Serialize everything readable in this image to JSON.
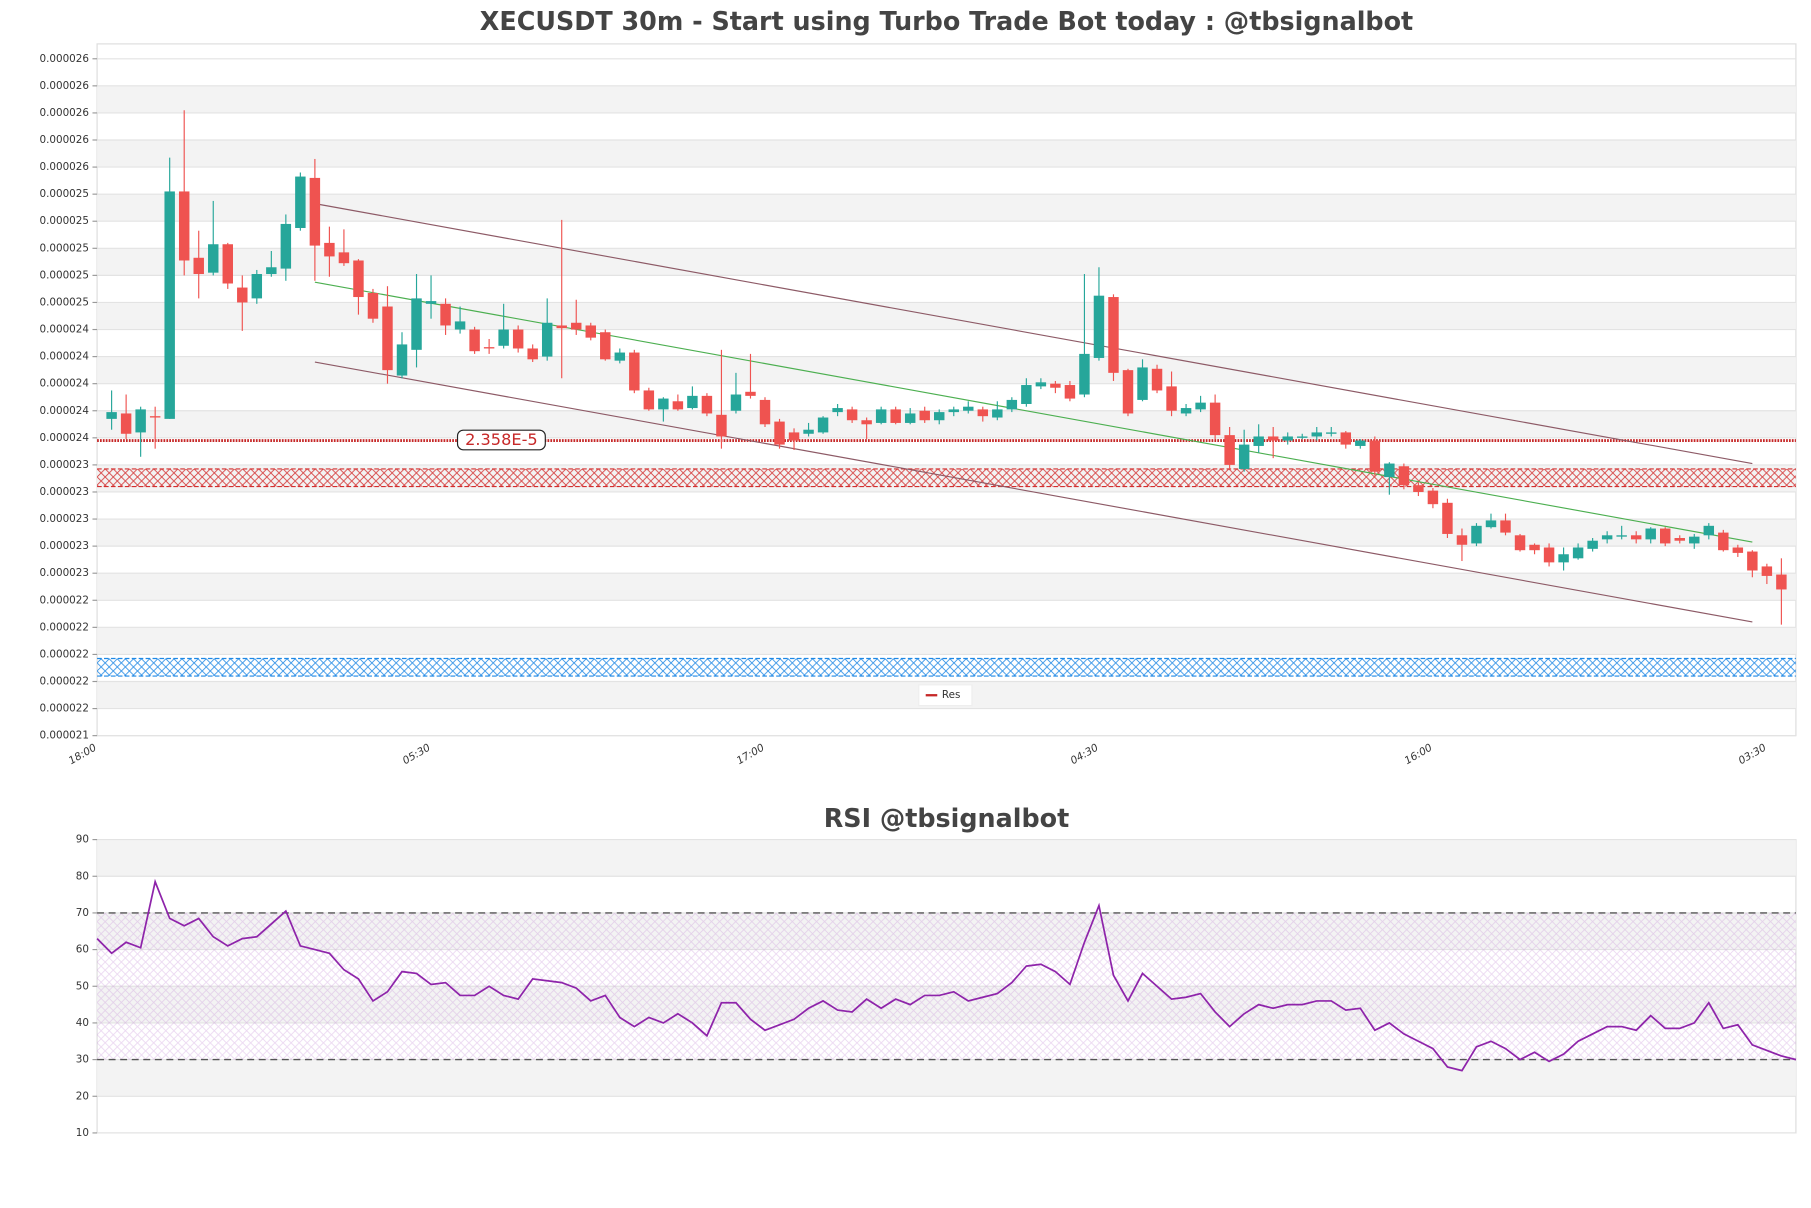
{
  "chart_data": [
    {
      "type": "candlestick",
      "title": "XECUSDT 30m - Start using Turbo Trade Bot today : @tbsignalbot",
      "categories": [
        "18:00",
        null,
        null,
        null,
        null,
        null,
        null,
        null,
        null,
        null,
        null,
        null,
        null,
        null,
        null,
        null,
        null,
        null,
        null,
        null,
        null,
        null,
        null,
        "05:30",
        null,
        null,
        null,
        null,
        null,
        null,
        null,
        null,
        null,
        null,
        null,
        null,
        null,
        null,
        null,
        null,
        null,
        null,
        null,
        null,
        null,
        null,
        "17:00",
        null,
        null,
        null,
        null,
        null,
        null,
        null,
        null,
        null,
        null,
        null,
        null,
        null,
        null,
        null,
        null,
        null,
        null,
        null,
        null,
        null,
        null,
        "04:30",
        null,
        null,
        null,
        null,
        null,
        null,
        null,
        null,
        null,
        null,
        null,
        null,
        null,
        null,
        null,
        null,
        null,
        null,
        null,
        null,
        null,
        null,
        "16:00",
        null,
        null,
        null,
        null,
        null,
        null,
        null,
        null,
        null,
        null,
        null,
        null,
        null,
        null,
        null,
        null,
        null,
        null,
        null,
        null,
        null,
        null,
        "03:30",
        null,
        null
      ],
      "ohlc": [
        null,
        [
          2.374e-05,
          2.395e-05,
          2.366e-05,
          2.379e-05
        ],
        [
          2.378e-05,
          2.392e-05,
          2.359e-05,
          2.363e-05
        ],
        [
          2.364e-05,
          2.383e-05,
          2.346e-05,
          2.381e-05
        ],
        [
          2.376e-05,
          2.383e-05,
          2.352e-05,
          2.375e-05
        ],
        [
          2.374e-05,
          2.567e-05,
          2.374e-05,
          2.542e-05
        ],
        [
          2.542e-05,
          2.602e-05,
          2.48e-05,
          2.491e-05
        ],
        [
          2.493e-05,
          2.513e-05,
          2.463e-05,
          2.481e-05
        ],
        [
          2.482e-05,
          2.535e-05,
          2.48e-05,
          2.503e-05
        ],
        [
          2.503e-05,
          2.504e-05,
          2.47e-05,
          2.474e-05
        ],
        [
          2.471e-05,
          2.48e-05,
          2.439e-05,
          2.46e-05
        ],
        [
          2.463e-05,
          2.484e-05,
          2.459e-05,
          2.481e-05
        ],
        [
          2.481e-05,
          2.498e-05,
          2.479e-05,
          2.486e-05
        ],
        [
          2.485e-05,
          2.525e-05,
          2.476e-05,
          2.518e-05
        ],
        [
          2.515e-05,
          2.556e-05,
          2.513e-05,
          2.553e-05
        ],
        [
          2.552e-05,
          2.566e-05,
          2.476e-05,
          2.502e-05
        ],
        [
          2.504e-05,
          2.516e-05,
          2.479e-05,
          2.494e-05
        ],
        [
          2.497e-05,
          2.514e-05,
          2.487e-05,
          2.489e-05
        ],
        [
          2.491e-05,
          2.492e-05,
          2.451e-05,
          2.464e-05
        ],
        [
          2.467e-05,
          2.47e-05,
          2.445e-05,
          2.448e-05
        ],
        [
          2.457e-05,
          2.472e-05,
          2.4e-05,
          2.41e-05
        ],
        [
          2.406e-05,
          2.438e-05,
          2.404e-05,
          2.429e-05
        ],
        [
          2.425e-05,
          2.481e-05,
          2.412e-05,
          2.463e-05
        ],
        [
          2.459e-05,
          2.48e-05,
          2.448e-05,
          2.461e-05
        ],
        [
          2.459e-05,
          2.463e-05,
          2.436e-05,
          2.443e-05
        ],
        [
          2.44e-05,
          2.457e-05,
          2.437e-05,
          2.446e-05
        ],
        [
          2.44e-05,
          2.442e-05,
          2.422e-05,
          2.424e-05
        ],
        [
          2.427e-05,
          2.433e-05,
          2.422e-05,
          2.426e-05
        ],
        [
          2.428e-05,
          2.459e-05,
          2.426e-05,
          2.44e-05
        ],
        [
          2.44e-05,
          2.443e-05,
          2.423e-05,
          2.426e-05
        ],
        [
          2.426e-05,
          2.429e-05,
          2.416e-05,
          2.418e-05
        ],
        [
          2.42e-05,
          2.463e-05,
          2.417e-05,
          2.445e-05
        ],
        [
          2.443e-05,
          2.521e-05,
          2.404e-05,
          2.441e-05
        ],
        [
          2.445e-05,
          2.462e-05,
          2.436e-05,
          2.44e-05
        ],
        [
          2.443e-05,
          2.445e-05,
          2.432e-05,
          2.434e-05
        ],
        [
          2.438e-05,
          2.44e-05,
          2.417e-05,
          2.418e-05
        ],
        [
          2.417e-05,
          2.426e-05,
          2.415e-05,
          2.423e-05
        ],
        [
          2.423e-05,
          2.425e-05,
          2.393e-05,
          2.395e-05
        ],
        [
          2.395e-05,
          2.397e-05,
          2.38e-05,
          2.381e-05
        ],
        [
          2.381e-05,
          2.39e-05,
          2.372e-05,
          2.389e-05
        ],
        [
          2.387e-05,
          2.392e-05,
          2.38e-05,
          2.381e-05
        ],
        [
          2.382e-05,
          2.398e-05,
          2.381e-05,
          2.391e-05
        ],
        [
          2.391e-05,
          2.393e-05,
          2.376e-05,
          2.378e-05
        ],
        [
          2.377e-05,
          2.425e-05,
          2.352e-05,
          2.361e-05
        ],
        [
          2.38e-05,
          2.408e-05,
          2.378e-05,
          2.392e-05
        ],
        [
          2.394e-05,
          2.422e-05,
          2.389e-05,
          2.391e-05
        ],
        [
          2.388e-05,
          2.39e-05,
          2.368e-05,
          2.37e-05
        ],
        [
          2.372e-05,
          2.374e-05,
          2.352e-05,
          2.355e-05
        ],
        [
          2.364e-05,
          2.367e-05,
          2.351e-05,
          2.358e-05
        ],
        [
          2.363e-05,
          2.371e-05,
          2.361e-05,
          2.366e-05
        ],
        [
          2.364e-05,
          2.376e-05,
          2.363e-05,
          2.375e-05
        ],
        [
          2.379e-05,
          2.385e-05,
          2.376e-05,
          2.382e-05
        ],
        [
          2.381e-05,
          2.383e-05,
          2.371e-05,
          2.373e-05
        ],
        [
          2.373e-05,
          2.375e-05,
          2.359e-05,
          2.37e-05
        ],
        [
          2.371e-05,
          2.383e-05,
          2.37e-05,
          2.381e-05
        ],
        [
          2.381e-05,
          2.383e-05,
          2.37e-05,
          2.371e-05
        ],
        [
          2.371e-05,
          2.382e-05,
          2.37e-05,
          2.378e-05
        ],
        [
          2.38e-05,
          2.383e-05,
          2.371e-05,
          2.373e-05
        ],
        [
          2.373e-05,
          2.381e-05,
          2.37e-05,
          2.379e-05
        ],
        [
          2.379e-05,
          2.383e-05,
          2.376e-05,
          2.381e-05
        ],
        [
          2.38e-05,
          2.387e-05,
          2.378e-05,
          2.383e-05
        ],
        [
          2.381e-05,
          2.383e-05,
          2.372e-05,
          2.376e-05
        ],
        [
          2.375e-05,
          2.387e-05,
          2.373e-05,
          2.381e-05
        ],
        [
          2.381e-05,
          2.39e-05,
          2.379e-05,
          2.388e-05
        ],
        [
          2.385e-05,
          2.404e-05,
          2.383e-05,
          2.399e-05
        ],
        [
          2.398e-05,
          2.404e-05,
          2.396e-05,
          2.401e-05
        ],
        [
          2.4e-05,
          2.402e-05,
          2.393e-05,
          2.397e-05
        ],
        [
          2.399e-05,
          2.402e-05,
          2.387e-05,
          2.389e-05
        ],
        [
          2.392e-05,
          2.481e-05,
          2.39e-05,
          2.422e-05
        ],
        [
          2.419e-05,
          2.486e-05,
          2.417e-05,
          2.465e-05
        ],
        [
          2.464e-05,
          2.466e-05,
          2.402e-05,
          2.408e-05
        ],
        [
          2.41e-05,
          2.411e-05,
          2.376e-05,
          2.378e-05
        ],
        [
          2.388e-05,
          2.418e-05,
          2.387e-05,
          2.412e-05
        ],
        [
          2.411e-05,
          2.414e-05,
          2.393e-05,
          2.395e-05
        ],
        [
          2.398e-05,
          2.409e-05,
          2.376e-05,
          2.38e-05
        ],
        [
          2.378e-05,
          2.385e-05,
          2.376e-05,
          2.382e-05
        ],
        [
          2.381e-05,
          2.391e-05,
          2.379e-05,
          2.386e-05
        ],
        [
          2.386e-05,
          2.392e-05,
          2.359e-05,
          2.362e-05
        ],
        [
          2.362e-05,
          2.368e-05,
          2.337e-05,
          2.34e-05
        ],
        [
          2.337e-05,
          2.366e-05,
          2.335e-05,
          2.355e-05
        ],
        [
          2.354e-05,
          2.37e-05,
          2.349e-05,
          2.361e-05
        ],
        [
          2.361e-05,
          2.368e-05,
          2.345e-05,
          2.358e-05
        ],
        [
          2.358e-05,
          2.364e-05,
          2.355e-05,
          2.361e-05
        ],
        [
          2.36e-05,
          2.363e-05,
          2.359e-05,
          2.361e-05
        ],
        [
          2.361e-05,
          2.368e-05,
          2.358e-05,
          2.364e-05
        ],
        [
          2.363e-05,
          2.368e-05,
          2.361e-05,
          2.364e-05
        ],
        [
          2.364e-05,
          2.365e-05,
          2.352e-05,
          2.355e-05
        ],
        [
          2.354e-05,
          2.359e-05,
          2.352e-05,
          2.358e-05
        ],
        [
          2.358e-05,
          2.361e-05,
          2.332e-05,
          2.335e-05
        ],
        [
          2.331e-05,
          2.342e-05,
          2.318e-05,
          2.341e-05
        ],
        [
          2.339e-05,
          2.341e-05,
          2.322e-05,
          2.325e-05
        ],
        [
          2.325e-05,
          2.327e-05,
          2.317e-05,
          2.32e-05
        ],
        [
          2.321e-05,
          2.323e-05,
          2.308e-05,
          2.311e-05
        ],
        [
          2.312e-05,
          2.315e-05,
          2.286e-05,
          2.289e-05
        ],
        [
          2.288e-05,
          2.293e-05,
          2.269e-05,
          2.281e-05
        ],
        [
          2.282e-05,
          2.297e-05,
          2.28e-05,
          2.295e-05
        ],
        [
          2.294e-05,
          2.304e-05,
          2.293e-05,
          2.299e-05
        ],
        [
          2.299e-05,
          2.304e-05,
          2.288e-05,
          2.29e-05
        ],
        [
          2.288e-05,
          2.289e-05,
          2.276e-05,
          2.277e-05
        ],
        [
          2.281e-05,
          2.282e-05,
          2.274e-05,
          2.277e-05
        ],
        [
          2.279e-05,
          2.282e-05,
          2.265e-05,
          2.268e-05
        ],
        [
          2.268e-05,
          2.279e-05,
          2.262e-05,
          2.274e-05
        ],
        [
          2.271e-05,
          2.282e-05,
          2.27e-05,
          2.279e-05
        ],
        [
          2.278e-05,
          2.286e-05,
          2.276e-05,
          2.284e-05
        ],
        [
          2.285e-05,
          2.291e-05,
          2.282e-05,
          2.288e-05
        ],
        [
          2.287e-05,
          2.295e-05,
          2.285e-05,
          2.288e-05
        ],
        [
          2.288e-05,
          2.291e-05,
          2.282e-05,
          2.285e-05
        ],
        [
          2.285e-05,
          2.294e-05,
          2.282e-05,
          2.293e-05
        ],
        [
          2.293e-05,
          2.294e-05,
          2.28e-05,
          2.282e-05
        ],
        [
          2.286e-05,
          2.288e-05,
          2.282e-05,
          2.284e-05
        ],
        [
          2.282e-05,
          2.289e-05,
          2.278e-05,
          2.287e-05
        ],
        [
          2.288e-05,
          2.297e-05,
          2.285e-05,
          2.295e-05
        ],
        [
          2.29e-05,
          2.292e-05,
          2.276e-05,
          2.277e-05
        ],
        [
          2.279e-05,
          2.281e-05,
          2.272e-05,
          2.275e-05
        ],
        [
          2.276e-05,
          2.277e-05,
          2.257e-05,
          2.262e-05
        ],
        [
          2.265e-05,
          2.267e-05,
          2.252e-05,
          2.258e-05
        ],
        [
          2.259e-05,
          2.271e-05,
          2.222e-05,
          2.248e-05
        ],
        null
      ],
      "up_color": "#26a69a",
      "down_color": "#ef5350",
      "ylim": [
        2.14e-05,
        2.651e-05
      ],
      "yticks": [
        {
          "value": 2.14e-05,
          "label": "0.000021"
        },
        {
          "value": 2.16e-05,
          "label": "0.000022"
        },
        {
          "value": 2.18e-05,
          "label": "0.000022"
        },
        {
          "value": 2.2e-05,
          "label": "0.000022"
        },
        {
          "value": 2.22e-05,
          "label": "0.000022"
        },
        {
          "value": 2.24e-05,
          "label": "0.000022"
        },
        {
          "value": 2.26e-05,
          "label": "0.000023"
        },
        {
          "value": 2.28e-05,
          "label": "0.000023"
        },
        {
          "value": 2.3e-05,
          "label": "0.000023"
        },
        {
          "value": 2.32e-05,
          "label": "0.000023"
        },
        {
          "value": 2.34e-05,
          "label": "0.000023"
        },
        {
          "value": 2.36e-05,
          "label": "0.000024"
        },
        {
          "value": 2.38e-05,
          "label": "0.000024"
        },
        {
          "value": 2.4e-05,
          "label": "0.000024"
        },
        {
          "value": 2.42e-05,
          "label": "0.000024"
        },
        {
          "value": 2.44e-05,
          "label": "0.000024"
        },
        {
          "value": 2.46e-05,
          "label": "0.000025"
        },
        {
          "value": 2.48e-05,
          "label": "0.000025"
        },
        {
          "value": 2.5e-05,
          "label": "0.000025"
        },
        {
          "value": 2.52e-05,
          "label": "0.000025"
        },
        {
          "value": 2.54e-05,
          "label": "0.000025"
        },
        {
          "value": 2.56e-05,
          "label": "0.000026"
        },
        {
          "value": 2.58e-05,
          "label": "0.000026"
        },
        {
          "value": 2.6e-05,
          "label": "0.000026"
        },
        {
          "value": 2.62e-05,
          "label": "0.000026"
        },
        {
          "value": 2.64e-05,
          "label": "0.000026"
        }
      ],
      "grid": true,
      "lines": [
        {
          "x": [
            15,
            114
          ],
          "y": [
            2.533e-05,
            2.341e-05
          ],
          "color": "#8d5a66"
        },
        {
          "x": [
            15,
            114
          ],
          "y": [
            2.475e-05,
            2.283e-05
          ],
          "color": "#4caf50"
        },
        {
          "x": [
            15,
            114
          ],
          "y": [
            2.416e-05,
            2.224e-05
          ],
          "color": "#8d5a66"
        }
      ],
      "zones": [
        {
          "range": [
            2.324e-05,
            2.337e-05
          ],
          "color": "#d32f2f"
        },
        {
          "range": [
            2.184e-05,
            2.197e-05
          ],
          "color": "#1e88e5"
        }
      ],
      "res": {
        "name": "Res",
        "value": 2.358e-05,
        "label": "2.358E-5",
        "color": "#c62828"
      },
      "legend": "lower center"
    },
    {
      "type": "line",
      "title": "RSI @tbsignalbot",
      "values": [
        63,
        59,
        62,
        60.5,
        78.5,
        68.5,
        66.5,
        68.5,
        63.5,
        61,
        63,
        63.5,
        67,
        70.5,
        61,
        60,
        59,
        54.5,
        52,
        46,
        48.5,
        54,
        53.5,
        50.5,
        51,
        47.5,
        47.5,
        50,
        47.5,
        46.5,
        52,
        51.5,
        51,
        49.5,
        46,
        47.5,
        41.5,
        39,
        41.5,
        40,
        42.5,
        40,
        36.5,
        45.5,
        45.5,
        41,
        38,
        39.5,
        41,
        44,
        46,
        43.5,
        43,
        46.5,
        44,
        46.5,
        45,
        47.5,
        47.5,
        48.5,
        46,
        47,
        48,
        51,
        55.5,
        56,
        54,
        50.5,
        62,
        72,
        53,
        46,
        53.5,
        50,
        46.5,
        47,
        48,
        43,
        39,
        42.5,
        45,
        44,
        45,
        45,
        46,
        46,
        43.5,
        44,
        38,
        40,
        37,
        35,
        33,
        28,
        27,
        33.5,
        35,
        33,
        30,
        32,
        29.5,
        31.5,
        35,
        37,
        39,
        39,
        38,
        42,
        38.5,
        38.5,
        40,
        45.5,
        38.5,
        39.5,
        34,
        32.5,
        31,
        30
      ],
      "color": "#8e24aa",
      "ylim": [
        10,
        90
      ],
      "yticks": [
        10,
        20,
        30,
        40,
        50,
        60,
        70,
        80,
        90
      ],
      "levels": [
        30,
        70
      ],
      "grid": true
    }
  ]
}
